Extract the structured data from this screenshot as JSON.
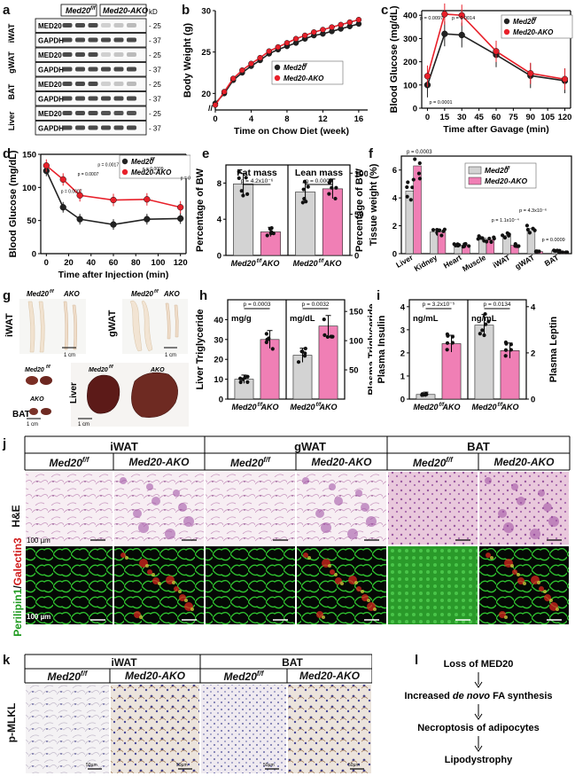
{
  "panels": {
    "a": {
      "label": "a",
      "headers": [
        "Med20",
        "f/f",
        "Med20-AKO"
      ],
      "kd": "kD",
      "tissues": [
        "iWAT",
        "gWAT",
        "BAT",
        "Liver"
      ],
      "rows": [
        "MED20",
        "GAPDH",
        "MED20",
        "GAPDH",
        "MED20",
        "GAPDH",
        "MED20",
        "GAPDH"
      ],
      "markers": [
        "25",
        "37",
        "25",
        "37",
        "25",
        "37",
        "25",
        "37"
      ]
    },
    "b": {
      "label": "b"
    },
    "c": {
      "label": "c"
    },
    "d": {
      "label": "d"
    },
    "e": {
      "label": "e"
    },
    "f": {
      "label": "f"
    },
    "g": {
      "label": "g",
      "iwat": "iWAT",
      "gwat": "gWAT",
      "bat": "BAT",
      "liver": "Liver",
      "ctrl": "Med20",
      "sup": "f/f",
      "ako": "AKO",
      "scale": "1 cm"
    },
    "h": {
      "label": "h"
    },
    "i": {
      "label": "i"
    },
    "j": {
      "label": "j",
      "tissues": [
        "iWAT",
        "gWAT",
        "BAT"
      ],
      "genotypes": [
        "Med20",
        "Med20-AKO",
        "Med20",
        "Med20-AKO",
        "Med20",
        "Med20-AKO"
      ],
      "sup": "f/f",
      "row1": "H&E",
      "row2a": "Perilipin1",
      "row2b": "/",
      "row2c": "Galectin3",
      "scale": "100 µm"
    },
    "k": {
      "label": "k",
      "tissues": [
        "iWAT",
        "BAT"
      ],
      "genotypes": [
        "Med20",
        "Med20-AKO",
        "Med20",
        "Med20-AKO"
      ],
      "sup": "f/f",
      "row": "p-MLKL",
      "scale": "50µm"
    },
    "l": {
      "label": "l",
      "steps": [
        "Loss of MED20",
        "Increased ",
        "de novo",
        " FA synthesis",
        "Necroptosis of adipocytes",
        "Lipodystrophy"
      ]
    }
  },
  "colors": {
    "ctrl": "#222222",
    "ako": "#e8202a",
    "ako_bar": "#f07fb5",
    "ctrl_bar": "#d3d3d3"
  },
  "legend": {
    "ctrl": "Med20",
    "ctrl_sup": "f/f",
    "ako": "Med20-AKO"
  },
  "chart_data": [
    {
      "id": "b",
      "type": "line",
      "xlabel": "Time on Chow Diet  (week)",
      "ylabel": "Body Weight (g)",
      "xlim": [
        0,
        17
      ],
      "ylim": [
        18,
        30
      ],
      "xticks": [
        0,
        4,
        8,
        12,
        16
      ],
      "yticks": [
        20,
        25,
        30
      ],
      "x": [
        0,
        1,
        2,
        3,
        4,
        5,
        6,
        7,
        8,
        9,
        10,
        11,
        12,
        13,
        14,
        15,
        16
      ],
      "series": [
        {
          "name": "Med20 f/f",
          "values": [
            18.8,
            20.0,
            21.6,
            22.5,
            23.3,
            24.0,
            24.8,
            25.3,
            25.7,
            26.1,
            26.6,
            27.0,
            27.2,
            27.5,
            27.8,
            28.1,
            28.4
          ]
        },
        {
          "name": "Med20-AKO",
          "values": [
            18.6,
            20.2,
            21.8,
            22.8,
            23.6,
            24.3,
            25.1,
            25.6,
            26.1,
            26.6,
            27.0,
            27.4,
            27.7,
            28.0,
            28.3,
            28.6,
            28.9
          ]
        }
      ]
    },
    {
      "id": "c",
      "type": "line",
      "xlabel": "Time after Gavage (min)",
      "ylabel": "Blood Glucose (mg/dL)",
      "xlim": [
        -5,
        125
      ],
      "ylim": [
        0,
        420
      ],
      "xticks": [
        0,
        15,
        30,
        45,
        60,
        75,
        90,
        105,
        120
      ],
      "yticks": [
        0,
        100,
        200,
        300,
        400
      ],
      "x": [
        0,
        15,
        30,
        60,
        90,
        120
      ],
      "series": [
        {
          "name": "Med20 f/f",
          "values": [
            100,
            320,
            315,
            230,
            140,
            118
          ]
        },
        {
          "name": "Med20-AKO",
          "values": [
            138,
            405,
            400,
            245,
            150,
            125
          ]
        }
      ],
      "annotations": [
        "p = 0.0097",
        "p = 0.0014",
        "p = 0.0001"
      ]
    },
    {
      "id": "d",
      "type": "line",
      "xlabel": "Time after Injection (min)",
      "ylabel": "Blood Glucose (mg/dL)",
      "xlim": [
        -5,
        125
      ],
      "ylim": [
        0,
        150
      ],
      "xticks": [
        0,
        20,
        40,
        60,
        80,
        100,
        120
      ],
      "yticks": [
        0,
        50,
        100,
        150
      ],
      "x": [
        0,
        15,
        30,
        60,
        90,
        120
      ],
      "series": [
        {
          "name": "Med20 f/f",
          "values": [
            125,
            70,
            52,
            44,
            52,
            53
          ]
        },
        {
          "name": "Med20-AKO",
          "values": [
            133,
            112,
            88,
            81,
            82,
            70
          ]
        }
      ],
      "annotations": [
        "p = 0.0007",
        "p = 0.0007",
        "p = 0.0017",
        "p = 0.0009",
        "p = 0.0007"
      ]
    },
    {
      "id": "e",
      "type": "bar",
      "ylabel": "Percentage of BW",
      "groups": [
        {
          "title": "Fat mass",
          "categories": [
            "Med20 f/f",
            "AKO"
          ],
          "values": [
            7.9,
            2.6
          ],
          "ylim": [
            0,
            10
          ],
          "yticks": [
            0,
            4,
            8
          ],
          "p": "p = 4.2x10⁻⁶"
        },
        {
          "title": "Lean mass",
          "categories": [
            "Med20 f/f",
            "AKO"
          ],
          "values": [
            77,
            81
          ],
          "ylim": [
            0,
            110
          ],
          "yticks": [
            0,
            50,
            100
          ],
          "p": "p = 0.0003"
        }
      ]
    },
    {
      "id": "f",
      "type": "bar",
      "ylabel": "Tissue weight (%)",
      "ylim": [
        0,
        7
      ],
      "yticks": [
        0,
        2,
        4,
        6
      ],
      "categories": [
        "Liver",
        "Kidney",
        "Heart",
        "Muscle",
        "iWAT",
        "gWAT",
        "BAT"
      ],
      "series": [
        {
          "name": "Med20 f/f",
          "values": [
            4.5,
            1.55,
            0.6,
            1.1,
            1.3,
            1.8,
            0.2
          ]
        },
        {
          "name": "Med20-AKO",
          "values": [
            6.3,
            1.55,
            0.6,
            1.0,
            0.6,
            0.15,
            0.1
          ]
        }
      ],
      "annotations": [
        "p = 0.0003",
        "p = 1.1x10⁻⁴",
        "p = 4.3x10⁻⁶",
        "p = 0.0009"
      ]
    },
    {
      "id": "h",
      "type": "bar",
      "groups": [
        {
          "ylabel": "Liver Triglyceride",
          "unit": "mg/g",
          "categories": [
            "Med20 f/f",
            "AKO"
          ],
          "values": [
            10,
            30
          ],
          "ylim": [
            0,
            50
          ],
          "yticks": [
            0,
            10,
            20,
            30,
            40
          ],
          "p": "p = 0.0003"
        },
        {
          "ylabel": "Plasma Triglyceride",
          "unit": "mg/dL",
          "categories": [
            "Med20 f/f",
            "AKO"
          ],
          "values": [
            75,
            125
          ],
          "ylim": [
            0,
            170
          ],
          "yticks": [
            50,
            100,
            150
          ],
          "p": "p = 0.0032"
        }
      ]
    },
    {
      "id": "i",
      "type": "bar",
      "groups": [
        {
          "ylabel": "Plasma Insulin",
          "unit": "ng/mL",
          "categories": [
            "Med20 f/f",
            "AKO"
          ],
          "values": [
            0.2,
            2.4
          ],
          "ylim": [
            0,
            4.3
          ],
          "yticks": [
            0,
            1,
            2,
            3,
            4
          ],
          "p": "p = 3.2x10⁻⁵"
        },
        {
          "ylabel": "Plasma Leptin",
          "unit": "ng/mL",
          "categories": [
            "Med20 f/f",
            "AKO"
          ],
          "values": [
            3.2,
            2.1
          ],
          "ylim": [
            0,
            4.3
          ],
          "yticks": [
            0,
            2,
            4
          ],
          "p": "p = 0.0134"
        }
      ]
    }
  ]
}
